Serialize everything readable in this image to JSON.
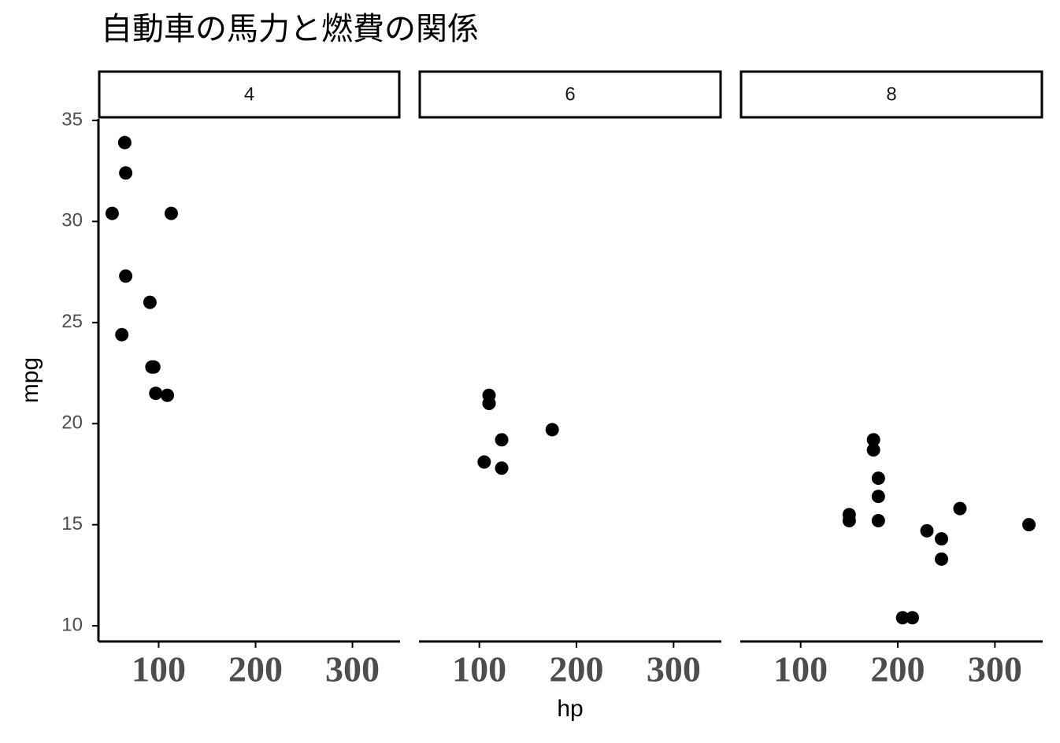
{
  "title": "自動車の馬力と燃費の関係",
  "xlabel": "hp",
  "ylabel": "mpg",
  "chart_data": [
    {
      "type": "scatter",
      "facet": "4",
      "color": "#000000",
      "x": [
        93,
        62,
        95,
        66,
        52,
        65,
        97,
        66,
        91,
        113,
        109
      ],
      "y": [
        22.8,
        24.4,
        22.8,
        32.4,
        30.4,
        33.9,
        21.5,
        27.3,
        26.0,
        30.4,
        21.4
      ],
      "xlim": [
        37.85,
        349.15
      ],
      "ylim": [
        9.225,
        35.075
      ],
      "xticks": [
        100,
        200,
        300
      ],
      "yticks": [
        10,
        15,
        20,
        25,
        30,
        35
      ]
    },
    {
      "type": "scatter",
      "facet": "6",
      "color": "#000000",
      "x": [
        110,
        110,
        110,
        105,
        123,
        123,
        175
      ],
      "y": [
        21.0,
        21.0,
        21.4,
        18.1,
        19.2,
        17.8,
        19.7
      ],
      "xlim": [
        37.85,
        349.15
      ],
      "ylim": [
        9.225,
        35.075
      ],
      "xticks": [
        100,
        200,
        300
      ]
    },
    {
      "type": "scatter",
      "facet": "8",
      "color": "#000000",
      "x": [
        175,
        245,
        180,
        180,
        180,
        205,
        215,
        230,
        150,
        150,
        245,
        175,
        264,
        335
      ],
      "y": [
        18.7,
        14.3,
        16.4,
        17.3,
        15.2,
        10.4,
        10.4,
        14.7,
        15.5,
        15.2,
        13.3,
        19.2,
        15.8,
        15.0
      ],
      "xlim": [
        37.85,
        349.15
      ],
      "ylim": [
        9.225,
        35.075
      ],
      "xticks": [
        100,
        200,
        300
      ]
    }
  ]
}
